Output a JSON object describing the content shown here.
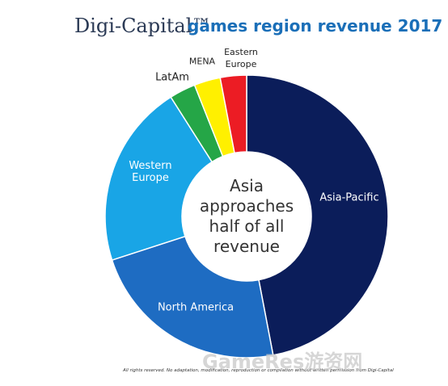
{
  "chart_data": {
    "type": "donut",
    "title_brand": "Digi-Capital™",
    "title": "games region revenue 2017",
    "center_text": "Asia approaches half of all revenue",
    "categories": [
      "Asia-Pacific",
      "North America",
      "Western Europe",
      "LatAm",
      "MENA",
      "Eastern Europe"
    ],
    "values": [
      47,
      23,
      21,
      3,
      3,
      3
    ],
    "colors": [
      "#0b1d5a",
      "#1e6cc2",
      "#19a5e6",
      "#25a647",
      "#fff000",
      "#ec1c24"
    ],
    "footnote": "All rights reserved. No adaptation, modification, reproduction or compilation without written permission from Digi-Capital",
    "watermark": "GameRes游资网"
  }
}
